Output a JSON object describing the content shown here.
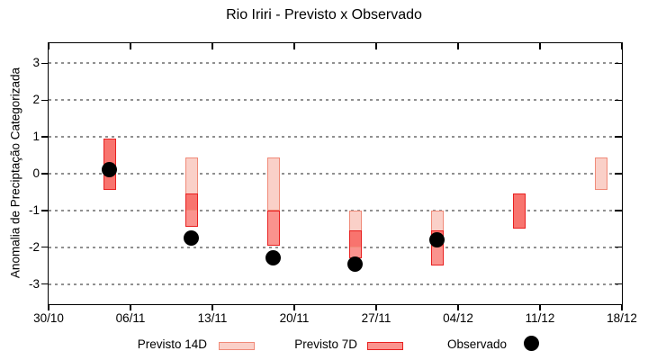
{
  "title": "Rio Iriri - Previsto x Observado",
  "legend": {
    "previsto_14d": "Previsto 14D",
    "previsto_7d": "Previsto 7D",
    "observado": "Observado"
  },
  "colors": {
    "p14_fill": "#fad0c8",
    "p14_border": "#f08a78",
    "p7_fill": "#fa938e",
    "p7_border": "#e82020",
    "overlap_fill": "#f8746e",
    "observed": "#000000",
    "grid": "#909090",
    "axis": "#000000",
    "background": "#ffffff"
  },
  "chart_data": {
    "type": "range-bar",
    "title": "Rio Iriri - Previsto x Observado",
    "xlabel": "",
    "ylabel": "Anomalia de Preciptação Categorizada",
    "ylim": [
      -3.55,
      3.55
    ],
    "y_ticks": [
      3,
      2,
      1,
      0,
      -1,
      -2,
      -3
    ],
    "x_axis_days": [
      0,
      49
    ],
    "x_ticks": [
      {
        "label": "30/10",
        "day": 0
      },
      {
        "label": "06/11",
        "day": 7
      },
      {
        "label": "13/11",
        "day": 14
      },
      {
        "label": "20/11",
        "day": 21
      },
      {
        "label": "27/11",
        "day": 28
      },
      {
        "label": "04/12",
        "day": 35
      },
      {
        "label": "11/12",
        "day": 42
      },
      {
        "label": "18/12",
        "day": 49
      }
    ],
    "grid": "dotted-horizontal",
    "legend_position": "bottom",
    "series_names": [
      "Previsto 14D",
      "Previsto 7D",
      "Observado"
    ],
    "periods": [
      {
        "date": "04/11",
        "day": 5.2,
        "previsto_14d": [
          -0.45,
          0.95
        ],
        "previsto_7d": [
          -0.45,
          0.95
        ],
        "observado": 0.1
      },
      {
        "date": "11/11",
        "day": 12.2,
        "previsto_14d": [
          -1.0,
          0.45
        ],
        "previsto_7d": [
          -1.45,
          -0.55
        ],
        "observado": -1.75
      },
      {
        "date": "18/11",
        "day": 19.2,
        "previsto_14d": [
          -1.0,
          0.45
        ],
        "previsto_7d": [
          -1.95,
          -1.0
        ],
        "observado": -2.3
      },
      {
        "date": "25/11",
        "day": 26.2,
        "previsto_14d": [
          -2.0,
          -1.0
        ],
        "previsto_7d": [
          -2.3,
          -1.55
        ],
        "observado": -2.45
      },
      {
        "date": "02/12",
        "day": 33.2,
        "previsto_14d": [
          -2.0,
          -1.0
        ],
        "previsto_7d": [
          -2.5,
          -1.55
        ],
        "observado": -1.8
      },
      {
        "date": "09/12",
        "day": 40.2,
        "previsto_14d": [
          -1.5,
          -0.55
        ],
        "previsto_7d": [
          -1.5,
          -0.55
        ],
        "observado": null
      },
      {
        "date": "16/12",
        "day": 47.2,
        "previsto_14d": [
          -0.45,
          0.45
        ],
        "previsto_7d": null,
        "observado": null
      }
    ]
  }
}
